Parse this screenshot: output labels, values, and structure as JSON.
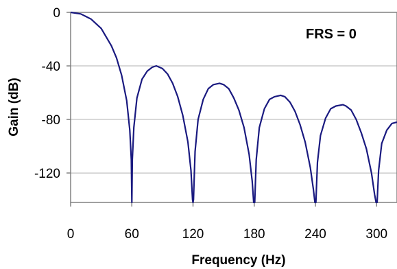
{
  "chart_data": {
    "type": "line",
    "xlabel": "Frequency (Hz)",
    "ylabel": "Gain (dB)",
    "annotation": "FRS = 0",
    "xlim": [
      0,
      320
    ],
    "ylim": [
      -142,
      0
    ],
    "xticks": [
      0,
      60,
      120,
      180,
      240,
      300
    ],
    "xtick_labels": [
      "0",
      "60",
      "120",
      "180",
      "240",
      "300"
    ],
    "yticks": [
      0,
      -40,
      -80,
      -120
    ],
    "ytick_labels": [
      "0",
      "-40",
      "-80",
      "-120"
    ],
    "grid": "horizontal",
    "line_color": "#1a1a80",
    "series": [
      {
        "x": [
          0,
          10,
          20,
          30,
          40,
          45,
          50,
          55,
          58,
          59.5,
          60,
          60.5,
          62,
          65,
          70,
          75,
          80,
          84,
          90,
          95,
          100,
          105,
          110,
          115,
          118,
          119.5,
          120,
          120.5,
          122,
          125,
          130,
          135,
          140,
          146,
          150,
          155,
          160,
          165,
          170,
          175,
          178,
          179.5,
          180,
          180.5,
          182,
          185,
          190,
          195,
          200,
          206,
          210,
          215,
          220,
          225,
          230,
          235,
          238,
          239.5,
          240,
          240.5,
          242,
          245,
          250,
          255,
          260,
          267,
          270,
          275,
          280,
          285,
          290,
          295,
          298,
          299.5,
          300,
          300.5,
          302,
          305,
          310,
          315,
          320
        ],
        "y": [
          0,
          -1.2,
          -5,
          -12,
          -25,
          -34,
          -47,
          -66,
          -88,
          -110,
          -142,
          -110,
          -86,
          -64,
          -50,
          -44,
          -41,
          -40,
          -42,
          -46,
          -53,
          -63,
          -77,
          -97,
          -118,
          -140,
          -142,
          -140,
          -104,
          -80,
          -65,
          -57,
          -54,
          -53,
          -54,
          -57,
          -64,
          -73,
          -86,
          -106,
          -126,
          -142,
          -142,
          -142,
          -110,
          -86,
          -72,
          -65,
          -63,
          -62,
          -63,
          -67,
          -74,
          -84,
          -97,
          -116,
          -132,
          -142,
          -142,
          -142,
          -112,
          -92,
          -79,
          -72,
          -70,
          -69,
          -70,
          -73,
          -80,
          -90,
          -102,
          -120,
          -136,
          -142,
          -142,
          -142,
          -118,
          -98,
          -88,
          -83,
          -82
        ]
      }
    ]
  }
}
